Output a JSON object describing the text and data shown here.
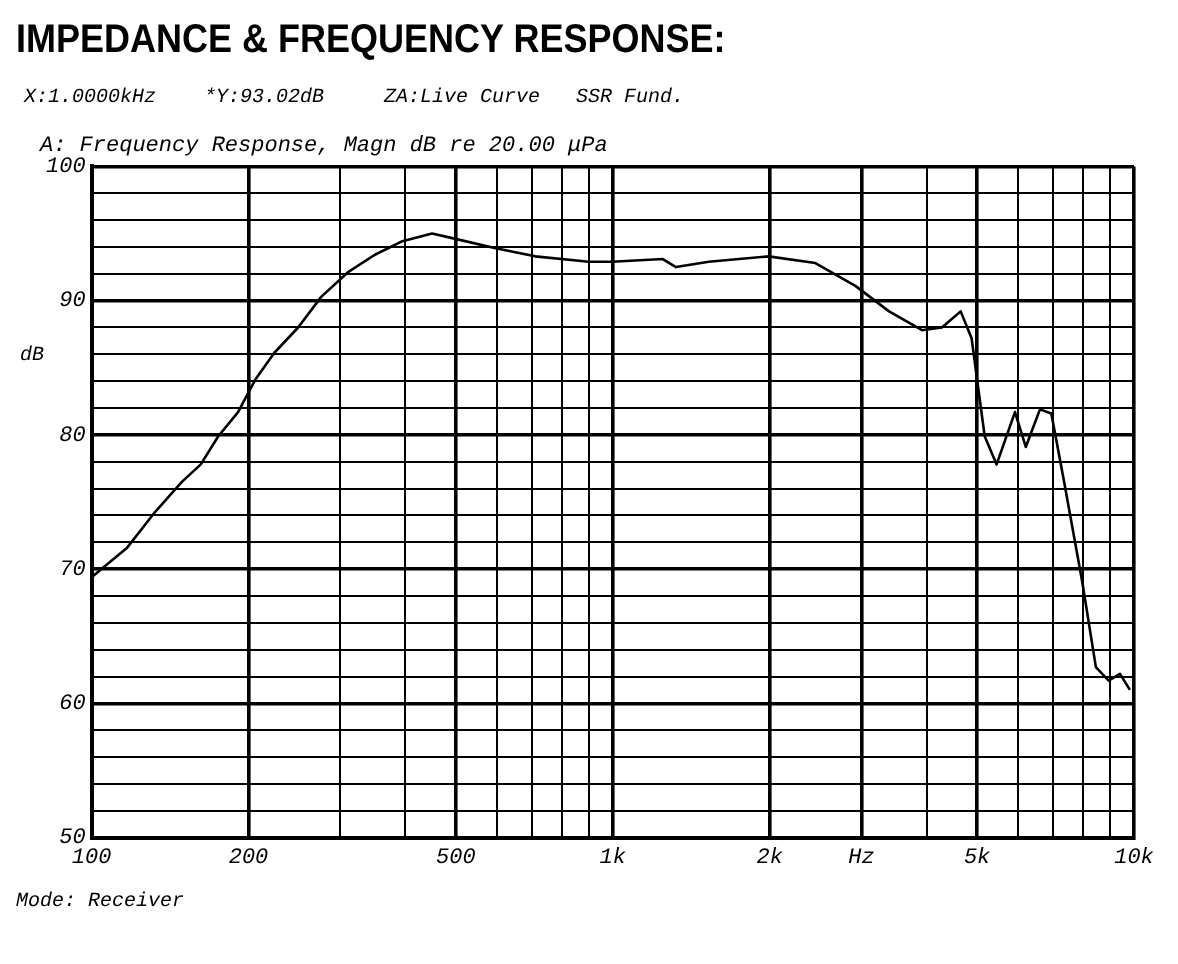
{
  "chart_data": {
    "type": "line",
    "title": "IMPEDANCE & FREQUENCY RESPONSE:",
    "subtitle": "A: Frequency Response, Magn dB re 20.00 μPa",
    "ylabel": "dB",
    "annotations": [
      "X:1.0000kHz    *Y:93.02dB     ZA:Live Curve   SSR Fund.",
      "Mode: Receiver"
    ],
    "log": "x",
    "grid": true,
    "legend": false,
    "marker": "none",
    "line_style": "solid",
    "xlim": [
      100,
      10000
    ],
    "ylim": [
      50,
      100
    ],
    "xticks": [
      100,
      {
        "value": 200,
        "label": "200"
      },
      {
        "value": 300,
        "label": null
      },
      {
        "value": 400,
        "label": null
      },
      500,
      {
        "value": 600,
        "label": null
      },
      {
        "value": 700,
        "label": null
      },
      {
        "value": 800,
        "label": null
      },
      {
        "value": 900,
        "label": null
      },
      {
        "value": 1000,
        "label": "1k"
      },
      {
        "value": 2000,
        "label": "2k"
      },
      {
        "value": 3000,
        "label": "Hz"
      },
      {
        "value": 4000,
        "label": null
      },
      {
        "value": 5000,
        "label": "5k"
      },
      {
        "value": 6000,
        "label": null
      },
      {
        "value": 7000,
        "label": null
      },
      {
        "value": 8000,
        "label": null
      },
      {
        "value": 9000,
        "label": null
      },
      {
        "value": 10000,
        "label": "10k"
      }
    ],
    "yticks": [
      50,
      {
        "value": 52,
        "label": null
      },
      {
        "value": 54,
        "label": null
      },
      {
        "value": 56,
        "label": null
      },
      {
        "value": 58,
        "label": null
      },
      60,
      {
        "value": 62,
        "label": null
      },
      {
        "value": 64,
        "label": null
      },
      {
        "value": 66,
        "label": null
      },
      {
        "value": 68,
        "label": null
      },
      70,
      {
        "value": 72,
        "label": null
      },
      {
        "value": 74,
        "label": null
      },
      {
        "value": 76,
        "label": null
      },
      {
        "value": 78,
        "label": null
      },
      80,
      {
        "value": 82,
        "label": null
      },
      {
        "value": 84,
        "label": null
      },
      {
        "value": 86,
        "label": null
      },
      {
        "value": 88,
        "label": null
      },
      90,
      {
        "value": 92,
        "label": null
      },
      {
        "value": 94,
        "label": null
      },
      {
        "value": 96,
        "label": null
      },
      {
        "value": 98,
        "label": null
      },
      100
    ],
    "series": [
      {
        "color": "#000000",
        "x": [
          100,
          117,
          132,
          149,
          162,
          175,
          191,
          206,
          224,
          249,
          276,
          310,
          349,
          393,
          450,
          499,
          596,
          710,
          899,
          997,
          1247,
          1322,
          1528,
          1991,
          2447,
          2920,
          3389,
          3920,
          4280,
          4650,
          4880,
          5170,
          5450,
          5910,
          6200,
          6600,
          6940,
          7360,
          7960,
          8450,
          8940,
          9400,
          9820
        ],
        "values": [
          69.4,
          71.6,
          74.2,
          76.5,
          77.8,
          79.9,
          81.7,
          84.1,
          86.1,
          88.0,
          90.3,
          92.1,
          93.4,
          94.4,
          95.0,
          94.6,
          93.9,
          93.3,
          92.9,
          92.9,
          93.1,
          92.5,
          92.9,
          93.3,
          92.8,
          91.1,
          89.2,
          87.8,
          88.0,
          89.2,
          87.2,
          79.9,
          77.8,
          81.7,
          79.1,
          81.9,
          81.6,
          76.3,
          69.0,
          62.7,
          61.7,
          62.2,
          61.0
        ]
      }
    ]
  }
}
